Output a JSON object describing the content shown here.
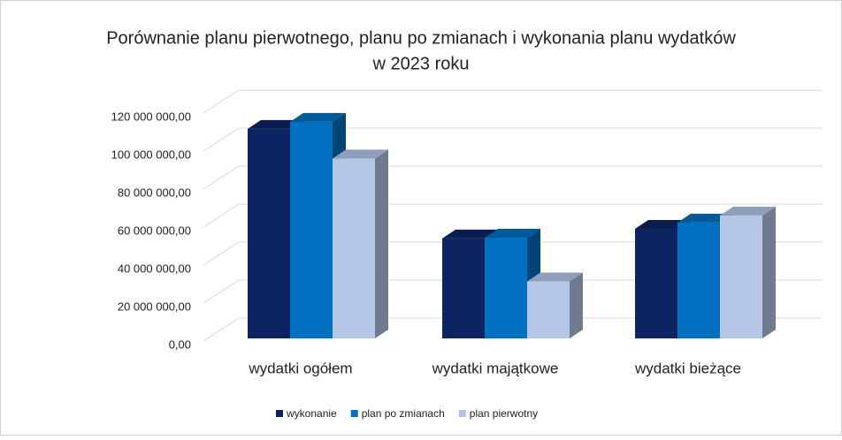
{
  "chart_data": {
    "type": "bar3d",
    "title": [
      "Porównanie planu pierwotnego, planu po zmianach i wykonania planu wydatków",
      "w 2023 roku"
    ],
    "categories": [
      "wydatki ogółem",
      "wydatki majątkowe",
      "wydatki bieżące"
    ],
    "series": [
      {
        "name": "wykonanie",
        "color": "#0c2461",
        "values": [
          110300000,
          52600000,
          57700000
        ]
      },
      {
        "name": "plan po zmianach",
        "color": "#0070c0",
        "values": [
          114000000,
          53000000,
          61000000
        ]
      },
      {
        "name": "plan pierwotny",
        "color": "#b4c7e7",
        "values": [
          94700000,
          30000000,
          64700000
        ]
      }
    ],
    "ylim": [
      0,
      120000000
    ],
    "yticks": [
      {
        "value": 0,
        "label": "0,00"
      },
      {
        "value": 20000000,
        "label": "20 000 000,00"
      },
      {
        "value": 40000000,
        "label": "40 000 000,00"
      },
      {
        "value": 60000000,
        "label": "60 000 000,00"
      },
      {
        "value": 80000000,
        "label": "80 000 000,00"
      },
      {
        "value": 100000000,
        "label": "100 000 000,00"
      },
      {
        "value": 120000000,
        "label": "120 000 000,00"
      }
    ],
    "grid": true,
    "legend": "bottom"
  }
}
